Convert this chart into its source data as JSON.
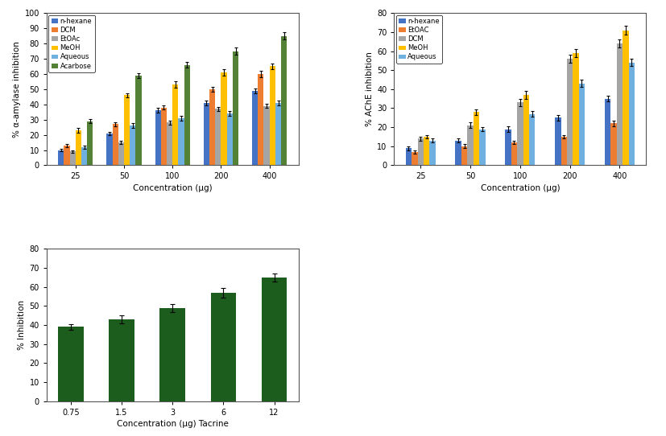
{
  "plot1": {
    "title": "",
    "ylabel": "% α-amylase inhibition",
    "xlabel": "Concentration (µg)",
    "concentrations": [
      "25",
      "50",
      "100",
      "200",
      "400"
    ],
    "series": [
      {
        "label": "n-hexane",
        "color": "#4472C4",
        "values": [
          10,
          21,
          36,
          41,
          49
        ],
        "errors": [
          1.0,
          1.0,
          1.5,
          1.5,
          1.5
        ]
      },
      {
        "label": "DCM",
        "color": "#ED7D31",
        "values": [
          13,
          27,
          38,
          50,
          60
        ],
        "errors": [
          1.0,
          1.5,
          1.5,
          1.5,
          2.0
        ]
      },
      {
        "label": "EtOAc",
        "color": "#A5A5A5",
        "values": [
          9,
          15,
          28,
          37,
          39
        ],
        "errors": [
          1.0,
          1.0,
          1.5,
          1.5,
          1.5
        ]
      },
      {
        "label": "MeOH",
        "color": "#FFC000",
        "values": [
          23,
          46,
          53,
          61,
          65
        ],
        "errors": [
          1.5,
          1.5,
          2.0,
          2.0,
          2.0
        ]
      },
      {
        "label": "Aqueous",
        "color": "#70B0E0",
        "values": [
          12,
          26,
          31,
          34,
          41
        ],
        "errors": [
          1.0,
          1.5,
          1.5,
          1.5,
          1.5
        ]
      },
      {
        "label": "Acarbose",
        "color": "#538135",
        "values": [
          29,
          59,
          66,
          75,
          85
        ],
        "errors": [
          1.5,
          1.5,
          2.0,
          2.5,
          2.5
        ]
      }
    ],
    "ylim": [
      0,
      100
    ],
    "yticks": [
      0,
      10,
      20,
      30,
      40,
      50,
      60,
      70,
      80,
      90,
      100
    ]
  },
  "plot2": {
    "title": "",
    "ylabel": "% AChE inhibition",
    "xlabel": "Concentration (µg)",
    "concentrations": [
      "25",
      "50",
      "100",
      "200",
      "400"
    ],
    "series": [
      {
        "label": "n-hexane",
        "color": "#4472C4",
        "values": [
          9,
          13,
          19,
          25,
          35
        ],
        "errors": [
          1.0,
          1.0,
          1.5,
          1.5,
          1.5
        ]
      },
      {
        "label": "EtOAC",
        "color": "#ED7D31",
        "values": [
          7,
          10,
          12,
          15,
          22
        ],
        "errors": [
          0.8,
          1.0,
          1.0,
          1.0,
          1.5
        ]
      },
      {
        "label": "DCM",
        "color": "#A5A5A5",
        "values": [
          14,
          21,
          33,
          56,
          64
        ],
        "errors": [
          1.0,
          1.5,
          2.0,
          2.0,
          2.0
        ]
      },
      {
        "label": "MeOH",
        "color": "#FFC000",
        "values": [
          15,
          28,
          37,
          59,
          71
        ],
        "errors": [
          1.0,
          1.5,
          2.0,
          2.0,
          2.5
        ]
      },
      {
        "label": "Aqueous",
        "color": "#70B0E0",
        "values": [
          13,
          19,
          27,
          43,
          54
        ],
        "errors": [
          1.0,
          1.0,
          1.5,
          2.0,
          2.0
        ]
      }
    ],
    "ylim": [
      0,
      80
    ],
    "yticks": [
      0,
      10,
      20,
      30,
      40,
      50,
      60,
      70,
      80
    ]
  },
  "plot3": {
    "title": "",
    "ylabel": "% Inhibition",
    "xlabel": "Concentration (µg) Tacrine",
    "concentrations": [
      "0.75",
      "1.5",
      "3",
      "6",
      "12"
    ],
    "color": "#1C5C1C",
    "values": [
      39,
      43,
      49,
      57,
      65
    ],
    "errors": [
      1.5,
      2.0,
      2.0,
      2.5,
      2.0
    ],
    "ylim": [
      0,
      80
    ],
    "yticks": [
      0,
      10,
      20,
      30,
      40,
      50,
      60,
      70,
      80
    ]
  },
  "fig_bg": "#ffffff",
  "plot_bg": "#ffffff",
  "border_color": "#555555"
}
